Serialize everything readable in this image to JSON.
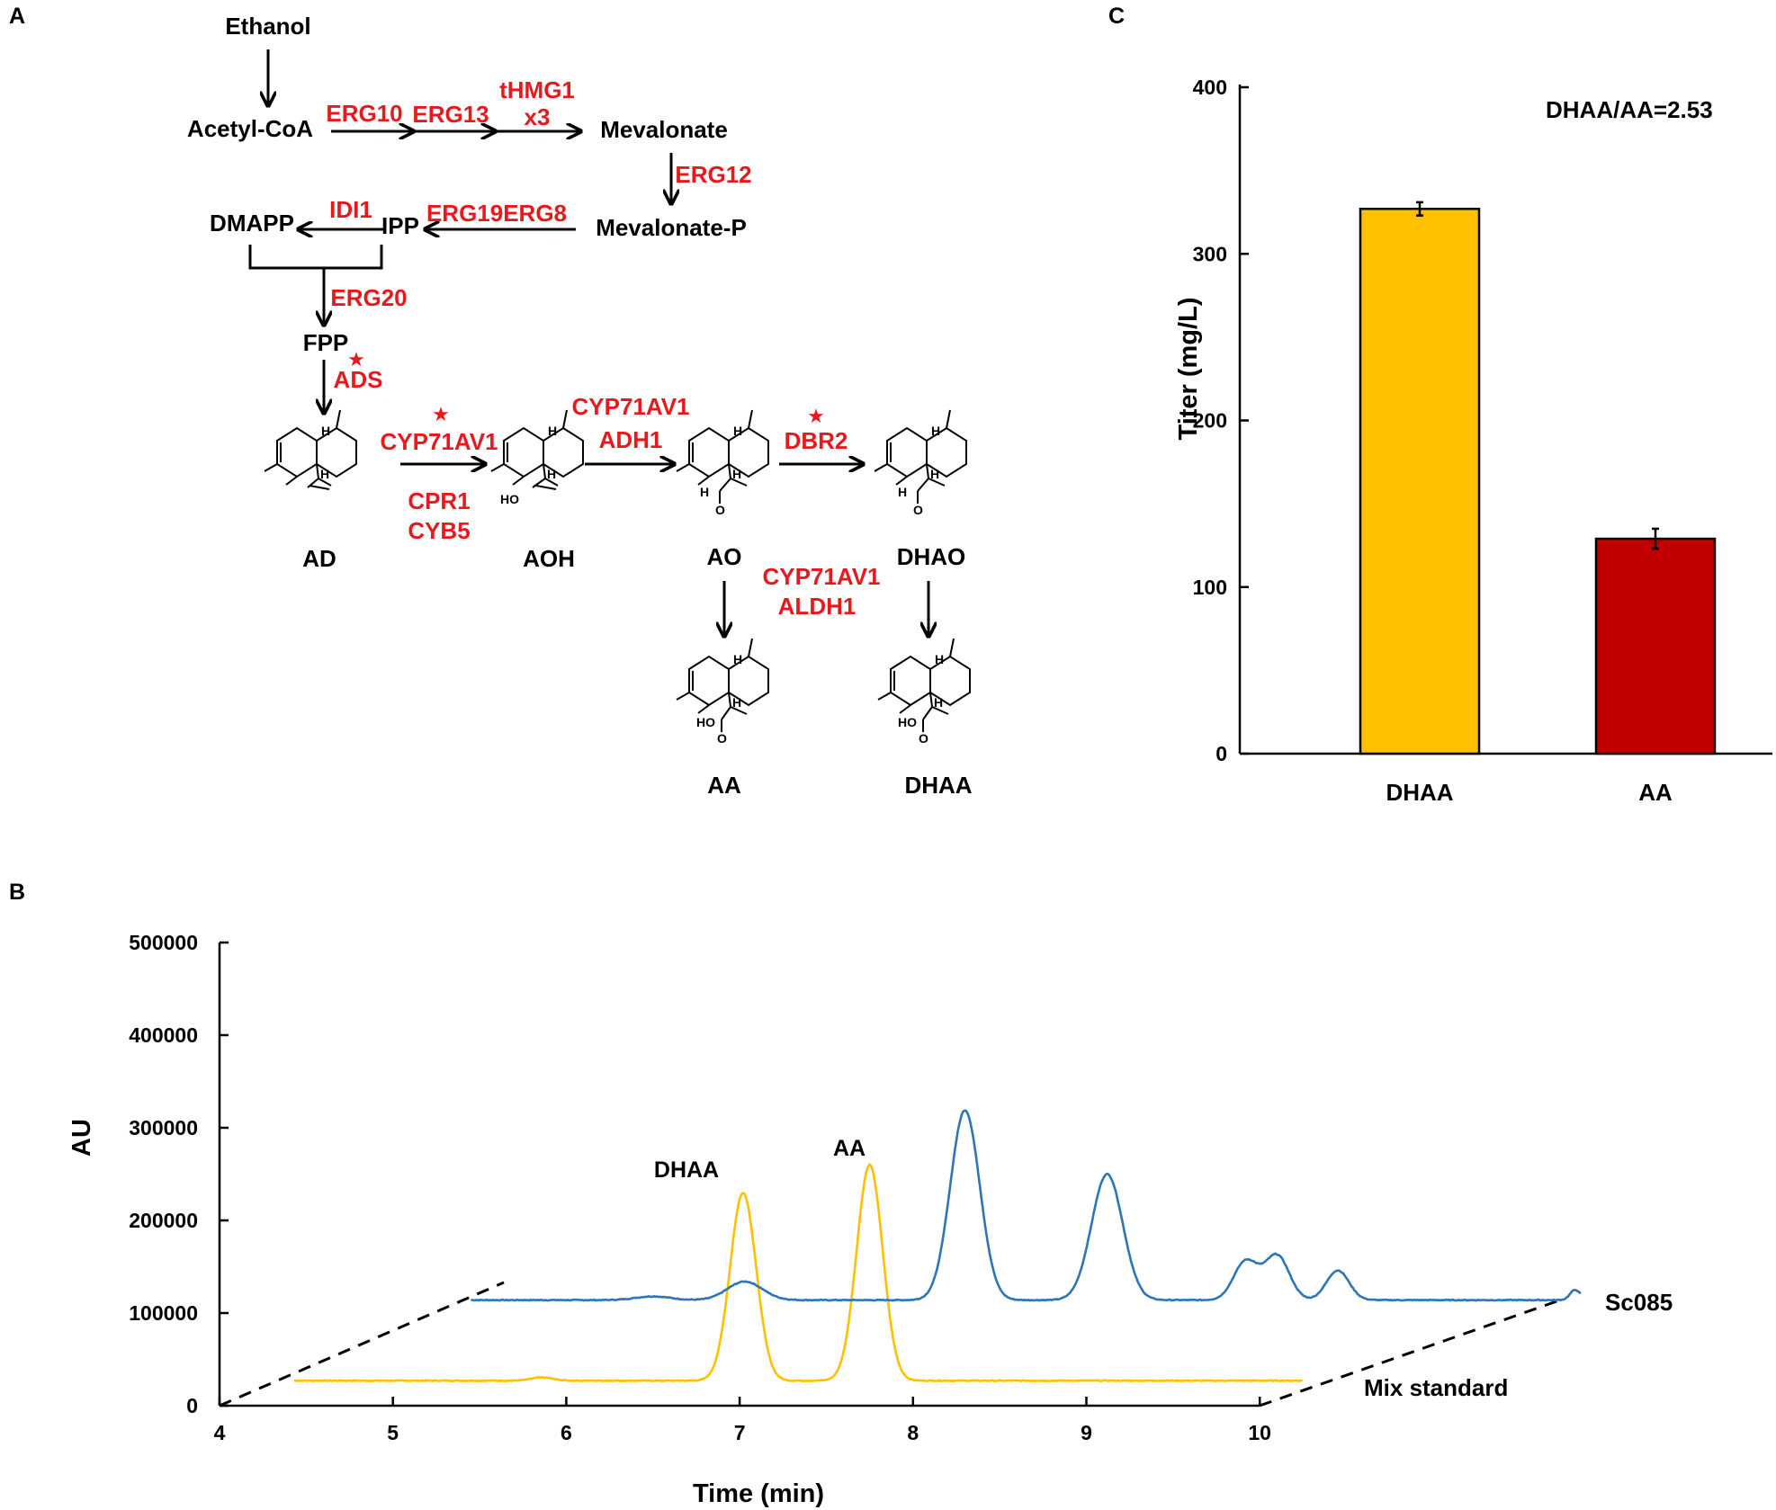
{
  "panels": {
    "a": "A",
    "b": "B",
    "c": "C"
  },
  "pathway": {
    "metabolites": {
      "ethanol": "Ethanol",
      "acetyl_coa": "Acetyl-CoA",
      "mevalonate": "Mevalonate",
      "mevalonate_p": "Mevalonate-P",
      "dmapp": "DMAPP",
      "ipp": "IPP",
      "fpp": "FPP",
      "ad": "AD",
      "aoh": "AOH",
      "ao": "AO",
      "dhao": "DHAO",
      "aa": "AA",
      "dhaa": "DHAA"
    },
    "enzymes": {
      "erg10": "ERG10",
      "erg13": "ERG13",
      "thmg1": "tHMG1",
      "x3": "x3",
      "erg12": "ERG12",
      "erg19_erg8": "ERG19ERG8",
      "idi1": "IDI1",
      "erg20": "ERG20",
      "ads": "ADS",
      "cyp71av1_a": "CYP71AV1",
      "cpr1": "CPR1",
      "cyb5": "CYB5",
      "cyp71av1_b": "CYP71AV1",
      "adh1": "ADH1",
      "dbr2": "DBR2",
      "cyp71av1_c": "CYP71AV1",
      "aldh1": "ALDH1"
    },
    "star_symbol": "★",
    "atom_labels": {
      "h": "H",
      "o": "O",
      "ho": "HO"
    }
  },
  "chart_data": [
    {
      "type": "bar",
      "panel": "C",
      "title": "",
      "categories": [
        "DHAA",
        "AA"
      ],
      "values": [
        327,
        129
      ],
      "errors": [
        4,
        6
      ],
      "colors": [
        "#ffc000",
        "#c00000"
      ],
      "xlabel": "",
      "ylabel": "Titer (mg/L)",
      "ylim": [
        0,
        400
      ],
      "yticks": [
        "0",
        "100",
        "200",
        "300",
        "400"
      ],
      "annotation": "DHAA/AA=2.53"
    },
    {
      "type": "line",
      "panel": "B",
      "title": "",
      "xlabel": "Time (min)",
      "ylabel": "AU",
      "xlim": [
        4,
        10
      ],
      "ylim": [
        0,
        500000
      ],
      "xticks": [
        "4",
        "5",
        "6",
        "7",
        "8",
        "9",
        "10"
      ],
      "yticks": [
        "0",
        "100000",
        "200000",
        "300000",
        "400000",
        "500000"
      ],
      "peak_labels": [
        "DHAA",
        "AA"
      ],
      "series": [
        {
          "name": "Mix standard",
          "color": "#ffc000",
          "baseline": 27000,
          "x_range": [
            4.43,
            10.25
          ],
          "peaks": [
            {
              "time": 5.86,
              "height": 3500,
              "width": 0.06
            },
            {
              "time": 7.02,
              "height": 203000,
              "width": 0.075
            },
            {
              "time": 7.75,
              "height": 233000,
              "width": 0.075
            }
          ]
        },
        {
          "name": "Sc085",
          "color": "#2e75b6",
          "baseline": 114000,
          "x_range": [
            5.45,
            11.85
          ],
          "peaks": [
            {
              "time": 6.5,
              "height": 4000,
              "width": 0.1
            },
            {
              "time": 7.03,
              "height": 20000,
              "width": 0.1
            },
            {
              "time": 8.3,
              "height": 205000,
              "width": 0.085
            },
            {
              "time": 9.12,
              "height": 136000,
              "width": 0.09
            },
            {
              "time": 9.92,
              "height": 42000,
              "width": 0.07
            },
            {
              "time": 10.1,
              "height": 48000,
              "width": 0.07
            },
            {
              "time": 10.45,
              "height": 32000,
              "width": 0.065
            },
            {
              "time": 11.82,
              "height": 11000,
              "width": 0.03
            }
          ]
        }
      ]
    }
  ]
}
